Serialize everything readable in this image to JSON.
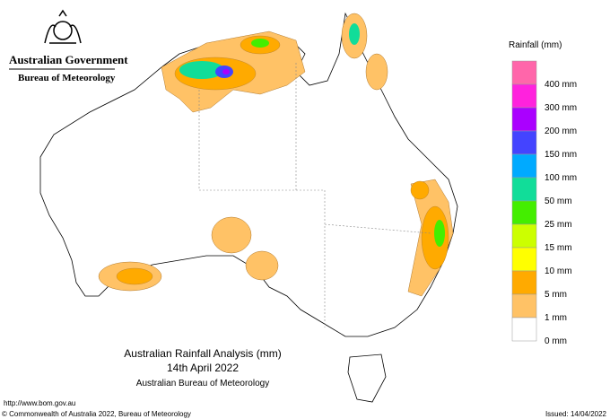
{
  "header": {
    "government": "Australian Government",
    "bureau": "Bureau of Meteorology"
  },
  "legend": {
    "title": "Rainfall (mm)",
    "items": [
      {
        "label": "400 mm",
        "color": "#ff66aa"
      },
      {
        "label": "300 mm",
        "color": "#ff22dd"
      },
      {
        "label": "200 mm",
        "color": "#aa00ff"
      },
      {
        "label": "150 mm",
        "color": "#4444ff"
      },
      {
        "label": "100 mm",
        "color": "#00aaff"
      },
      {
        "label": "50 mm",
        "color": "#11dd99"
      },
      {
        "label": "25 mm",
        "color": "#44ee00"
      },
      {
        "label": "15 mm",
        "color": "#ccff00"
      },
      {
        "label": "10 mm",
        "color": "#ffff00"
      },
      {
        "label": "5 mm",
        "color": "#ffaa00"
      },
      {
        "label": "1 mm",
        "color": "#ffc266"
      },
      {
        "label": "0 mm",
        "color": "#ffffff"
      }
    ]
  },
  "caption": [
    "Australian Rainfall Analysis (mm)",
    "14th April 2022",
    "Australian Bureau of Meteorology"
  ],
  "footer": {
    "url": "http://www.bom.gov.au",
    "copyright": "© Commonwealth of Australia 2022, Bureau of Meteorology",
    "issued": "Issued: 14/04/2022"
  }
}
